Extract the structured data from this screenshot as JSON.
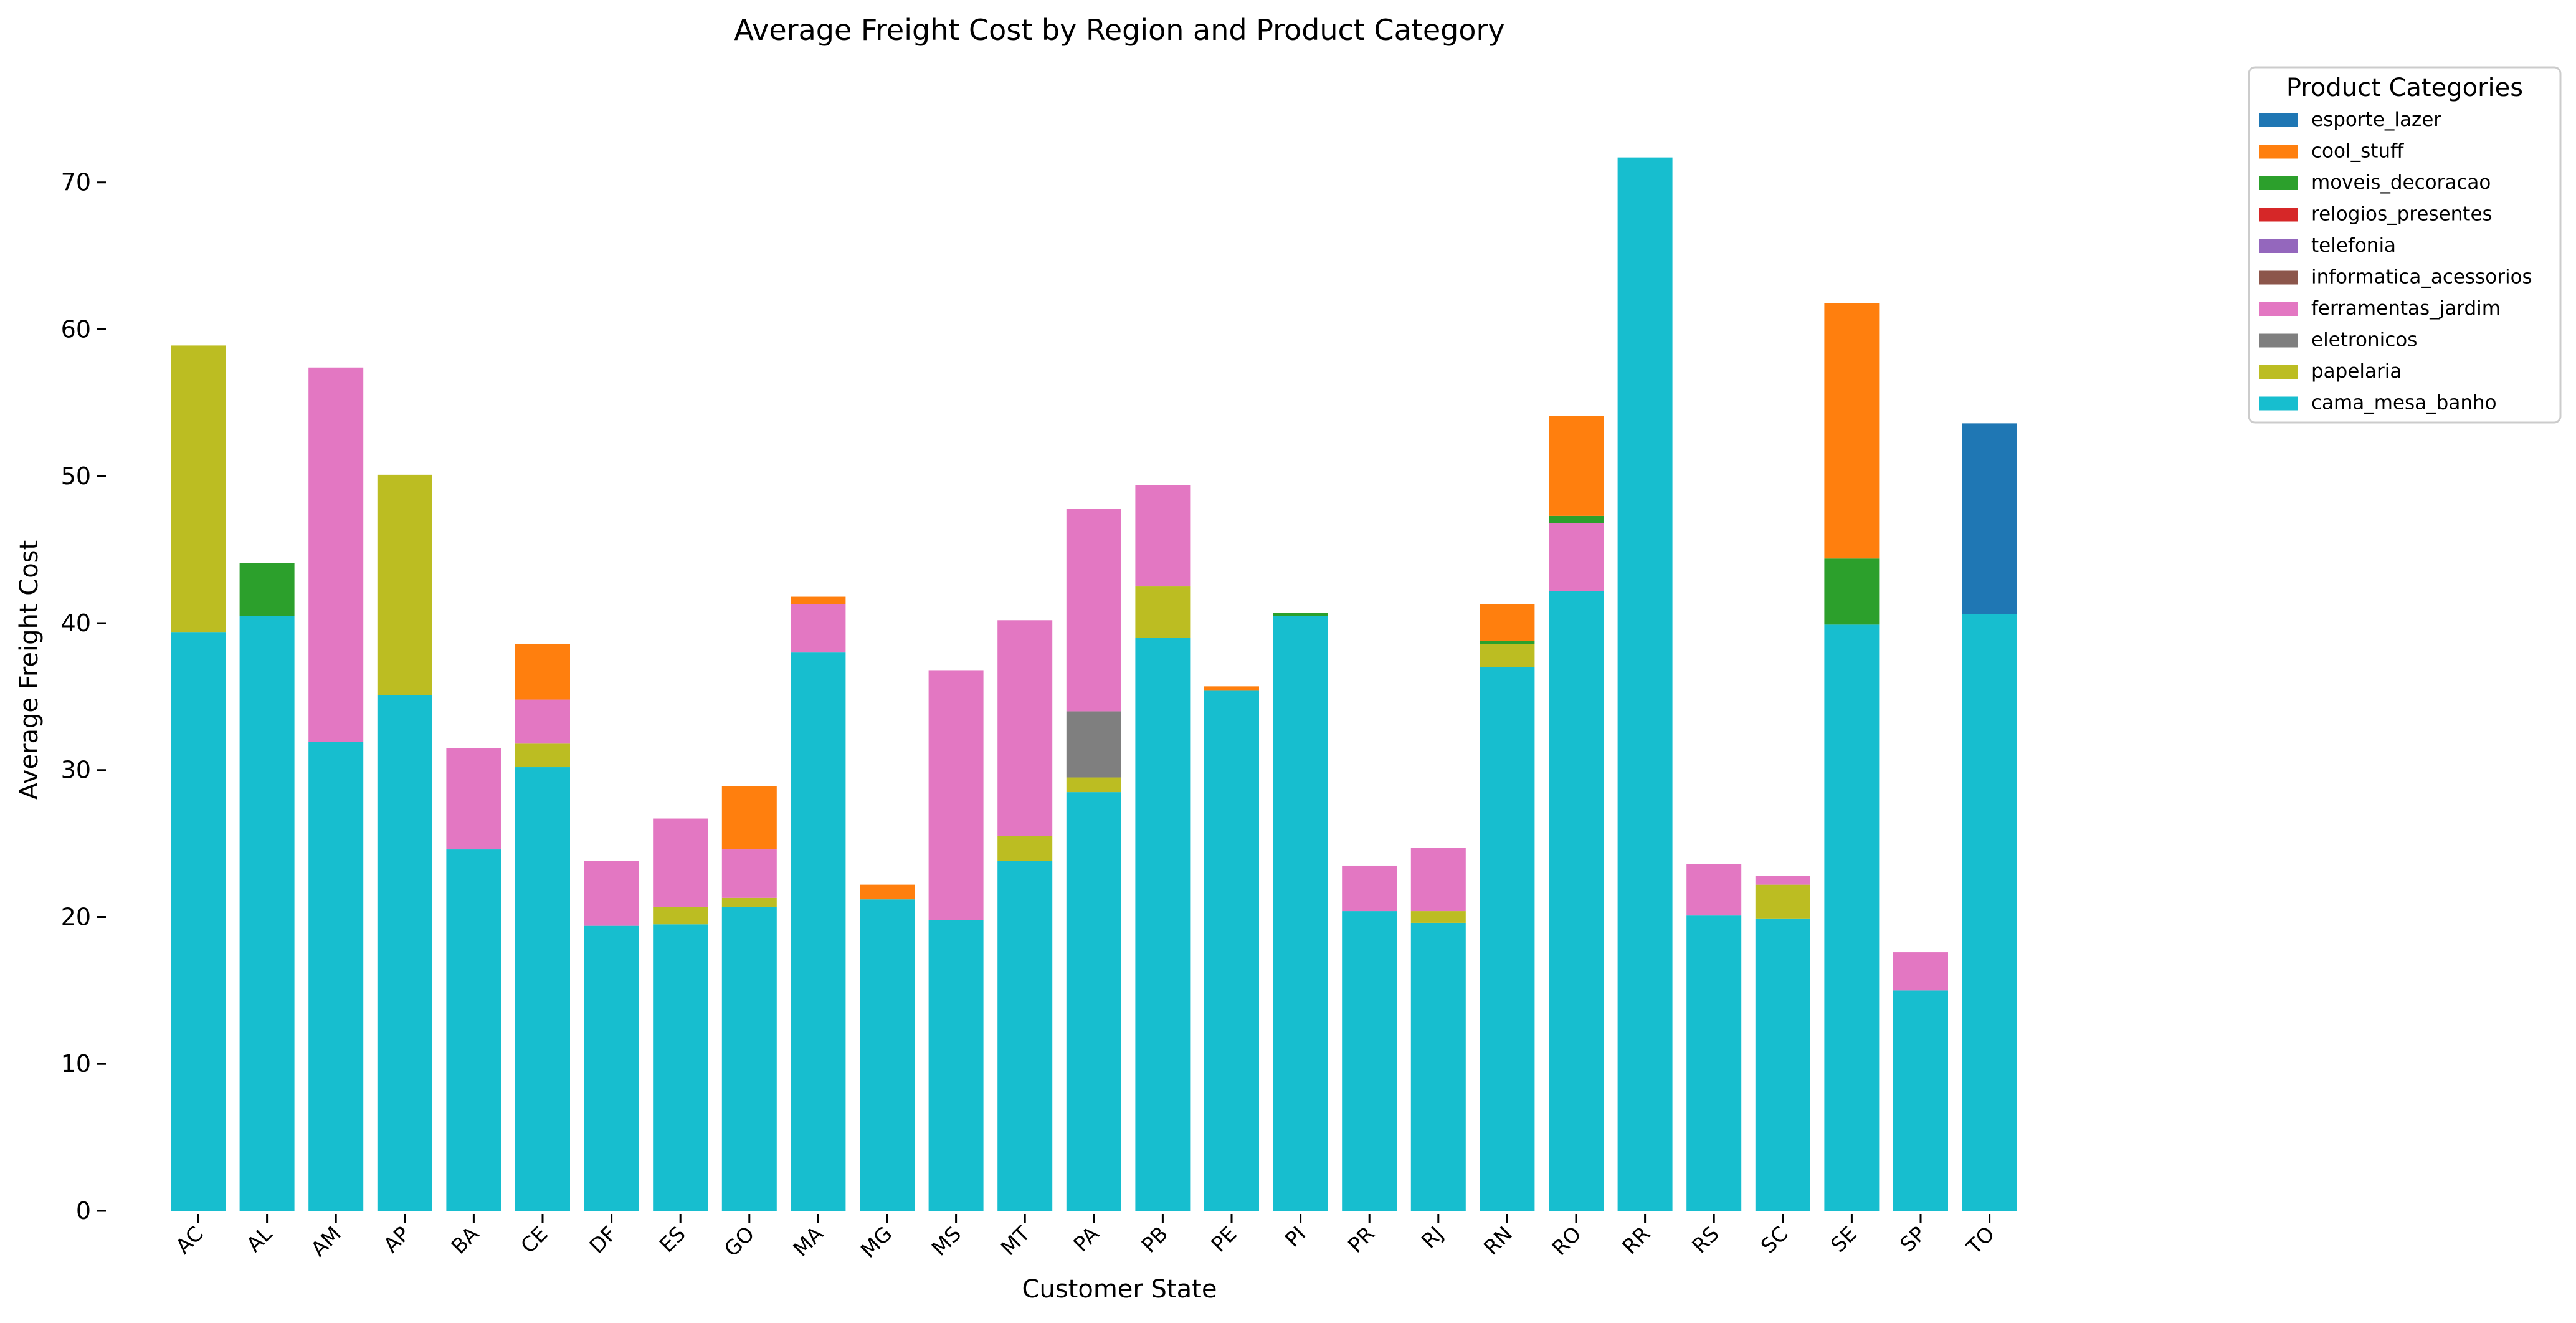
{
  "chart_data": {
    "type": "bar",
    "stacked": true,
    "title": "Average Freight Cost by Region and Product Category",
    "xlabel": "Customer State",
    "ylabel": "Average Freight Cost",
    "ylim": [
      0,
      75
    ],
    "yticks": [
      0,
      10,
      20,
      30,
      40,
      50,
      60,
      70
    ],
    "grid": false,
    "legend": {
      "title": "Product Categories",
      "placement": "outside-top-right"
    },
    "categories": [
      "AC",
      "AL",
      "AM",
      "AP",
      "BA",
      "CE",
      "DF",
      "ES",
      "GO",
      "MA",
      "MG",
      "MS",
      "MT",
      "PA",
      "PB",
      "PE",
      "PI",
      "PR",
      "RJ",
      "RN",
      "RO",
      "RR",
      "RS",
      "SC",
      "SE",
      "SP",
      "TO"
    ],
    "series": [
      {
        "name": "cama_mesa_banho",
        "color": "#17becf",
        "values": [
          39.4,
          40.5,
          31.9,
          35.1,
          24.6,
          30.2,
          19.4,
          19.5,
          20.7,
          38.0,
          21.2,
          19.8,
          23.8,
          28.5,
          39.0,
          35.4,
          40.5,
          20.4,
          19.6,
          37.0,
          42.2,
          71.7,
          20.1,
          19.9,
          39.9,
          15.0,
          40.6
        ]
      },
      {
        "name": "papelaria",
        "color": "#bcbd22",
        "values": [
          19.5,
          0,
          0,
          15.0,
          0,
          1.6,
          0,
          1.2,
          0.6,
          0,
          0,
          0,
          1.7,
          1.0,
          3.5,
          0,
          0,
          0,
          0.8,
          1.6,
          0,
          0,
          0,
          2.3,
          0,
          0,
          0
        ]
      },
      {
        "name": "eletronicos",
        "color": "#7f7f7f",
        "values": [
          0,
          0,
          0,
          0,
          0,
          0,
          0,
          0,
          0,
          0,
          0,
          0,
          0,
          4.5,
          0,
          0,
          0,
          0,
          0,
          0,
          0,
          0,
          0,
          0,
          0,
          0,
          0
        ]
      },
      {
        "name": "ferramentas_jardim",
        "color": "#e377c2",
        "values": [
          0,
          0,
          25.5,
          0,
          6.9,
          3.0,
          4.4,
          6.0,
          3.3,
          3.3,
          0,
          17.0,
          14.7,
          13.8,
          6.9,
          0,
          0,
          3.1,
          4.3,
          0,
          4.6,
          0,
          3.5,
          0.6,
          0,
          2.6,
          0
        ]
      },
      {
        "name": "informatica_acessorios",
        "color": "#8c564b",
        "values": [
          0,
          0,
          0,
          0,
          0,
          0,
          0,
          0,
          0,
          0,
          0,
          0,
          0,
          0,
          0,
          0,
          0,
          0,
          0,
          0,
          0,
          0,
          0,
          0,
          0,
          0,
          0
        ]
      },
      {
        "name": "telefonia",
        "color": "#9467bd",
        "values": [
          0,
          0,
          0,
          0,
          0,
          0,
          0,
          0,
          0,
          0,
          0,
          0,
          0,
          0,
          0,
          0,
          0,
          0,
          0,
          0,
          0,
          0,
          0,
          0,
          0,
          0,
          0
        ]
      },
      {
        "name": "relogios_presentes",
        "color": "#d62728",
        "values": [
          0,
          0,
          0,
          0,
          0,
          0,
          0,
          0,
          0,
          0,
          0,
          0,
          0,
          0,
          0,
          0,
          0,
          0,
          0,
          0,
          0,
          0,
          0,
          0,
          0,
          0,
          0
        ]
      },
      {
        "name": "moveis_decoracao",
        "color": "#2ca02c",
        "values": [
          0,
          3.6,
          0,
          0,
          0,
          0,
          0,
          0,
          0,
          0,
          0,
          0,
          0,
          0,
          0,
          0,
          0.2,
          0,
          0,
          0.2,
          0.5,
          0,
          0,
          0,
          4.5,
          0,
          0
        ]
      },
      {
        "name": "cool_stuff",
        "color": "#ff7f0e",
        "values": [
          0,
          0,
          0,
          0,
          0,
          3.8,
          0,
          0,
          4.3,
          0.5,
          1.0,
          0,
          0,
          0,
          0,
          0.3,
          0,
          0,
          0,
          2.5,
          6.8,
          0,
          0,
          0,
          17.4,
          0,
          0
        ]
      },
      {
        "name": "esporte_lazer",
        "color": "#1f77b4",
        "values": [
          0,
          0,
          0,
          0,
          0,
          0,
          0,
          0,
          0,
          0,
          0,
          0,
          0,
          0,
          0,
          0,
          0,
          0,
          0,
          0,
          0,
          0,
          0,
          0,
          0,
          0,
          13.0
        ]
      }
    ],
    "legend_order": [
      "esporte_lazer",
      "cool_stuff",
      "moveis_decoracao",
      "relogios_presentes",
      "telefonia",
      "informatica_acessorios",
      "ferramentas_jardim",
      "eletronicos",
      "papelaria",
      "cama_mesa_banho"
    ]
  }
}
